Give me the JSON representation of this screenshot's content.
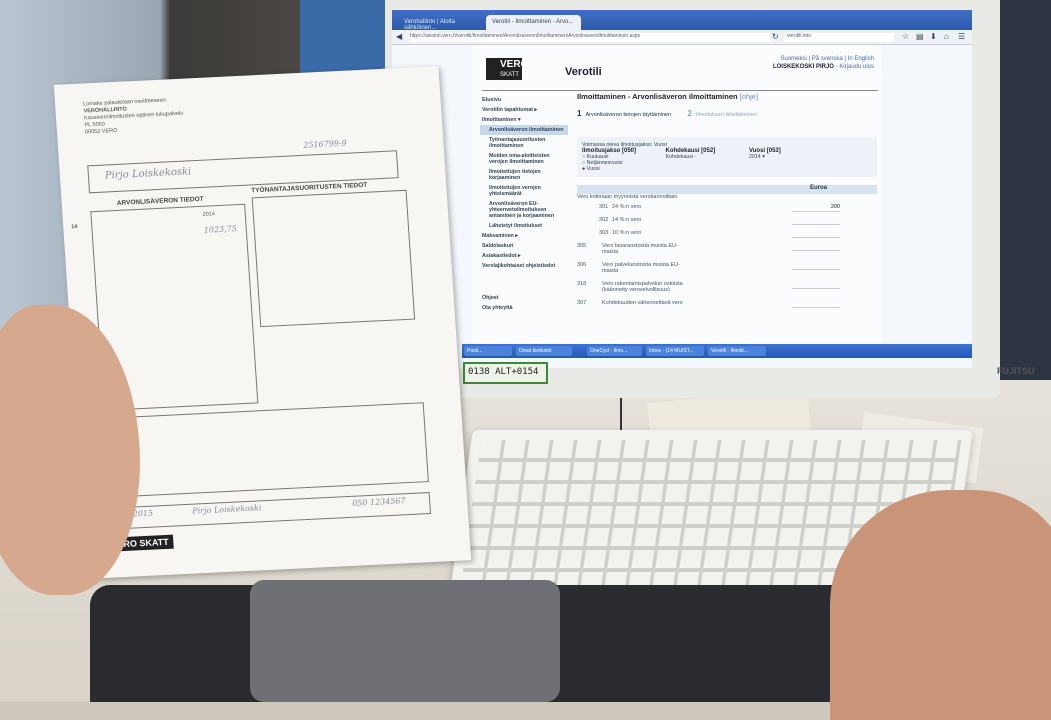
{
  "browser": {
    "tabs": [
      "Verohallinto | Aloita sähköinen...",
      "Verotili - Ilmoittaminen - Arvo..."
    ],
    "url": "https://asiointi.vero.fi/verotili/Ilmoittaminen/ArvonlisaveronIlmoittaminen/ArvonlisaveroIlmoittaminen.aspx",
    "search": "verotili.mio",
    "icons": [
      "back-icon",
      "lock-icon",
      "refresh-icon",
      "search-icon",
      "star-icon",
      "clipboard-icon",
      "download-icon",
      "home-icon",
      "menu-icon"
    ]
  },
  "site": {
    "logo": "VERO SKATT",
    "title": "Verotili",
    "lang_links": "Suomeksi | På svenska | In English",
    "user": "LOISKEKOSKI PIRJO",
    "logout": "Kirjaudu ulos"
  },
  "sidebar": [
    "Etusivu",
    "Verotilin tapahtumat ▸",
    "Ilmoittaminen ▾",
    "Arvonlisäveron ilmoittaminen",
    "Työnantajasuoritusten ilmoittaminen",
    "Muiden oma-aloitteisten verojen ilmoittaminen",
    "Ilmoitettujen tietojen korjaaminen",
    "Ilmoitettujen verojen yhteismäärät",
    "Arvonlisäveron EU-yhteenvetoilmoituksen antaminen ja korjaaminen",
    "Lähetetyt ilmoitukset",
    "Maksaminen ▸",
    "Saldolaskuri",
    "Asiakastiedot ▸",
    "Verolajikohtaiset ohjeistiedot",
    "Ohjeet",
    "Ota yhteyttä"
  ],
  "main": {
    "heading": "Ilmoittaminen - Arvonlisäveron ilmoittaminen",
    "help": "[ohje]",
    "steps": [
      {
        "num": "1",
        "label": "Arvonlisäveron tietojen täyttäminen"
      },
      {
        "num": "2",
        "label": "Ilmoituksen lähettäminen"
      }
    ],
    "period_note": "Voimassa oleva ilmoitusjakso: Vuosi",
    "period_label": "Ilmoitusjakso [050]",
    "period_options": [
      "Kuukausi",
      "Neljännesvuosi",
      "Vuosi"
    ],
    "period_selected": "Vuosi",
    "target_label": "Kohdekausi [052]",
    "target_value": "Kohdekausi -",
    "year_label": "Vuosi [053]",
    "year_value": "2014",
    "euro_header": "Euroa",
    "section": "Vero kotimaan myynnistä verokannoittain",
    "rows": [
      {
        "code": "301",
        "label": "24 %:n vero",
        "value": "200"
      },
      {
        "code": "302",
        "label": "14 %:n vero",
        "value": ""
      },
      {
        "code": "303",
        "label": "10 %:n vero",
        "value": ""
      },
      {
        "code": "305",
        "label": "Vero tavaraostoista muista EU-maista",
        "value": ""
      },
      {
        "code": "306",
        "label": "Vero palveluostoista muista EU-maista",
        "value": ""
      },
      {
        "code": "318",
        "label": "Vero rakentamispalvelun ostoista (käännetty verovelvollisuus)",
        "value": ""
      },
      {
        "code": "307",
        "label": "Kohdekauden vähennettävä vero",
        "value": ""
      }
    ]
  },
  "taskbar": [
    "Posti...",
    "Omat tiedostot",
    "OneCycl - Ilmo...",
    "Inbox - (14 MUIST...",
    "Verotili - Ilmoitt..."
  ],
  "monitor_brand": "FUJITSU",
  "sticky_note": "0138 ALT+0154",
  "paper": {
    "sender": "Lomake palautetaan osoitteeseen:",
    "org": "VEROHALLINTO",
    "org2": "Kausiveroilmoitusten optinen lukupalvelu",
    "pobox": "PL 5050",
    "city": "00052 VERO",
    "section1": "ARVONLISÄVERON TIEDOT",
    "section2": "TYÖNANTAJASUORITUSTEN TIEDOT",
    "name_hw": "Pirjo Loiskekoski",
    "id_hw": "2516799-9",
    "year": "2014",
    "amount_hw": "1023,75",
    "date_hw": "3.2.2015",
    "sign_hw": "Pirjo Loiskekoski",
    "phone_hw": "050 1234567",
    "row_number": "14",
    "logo": "VERO SKATT"
  }
}
